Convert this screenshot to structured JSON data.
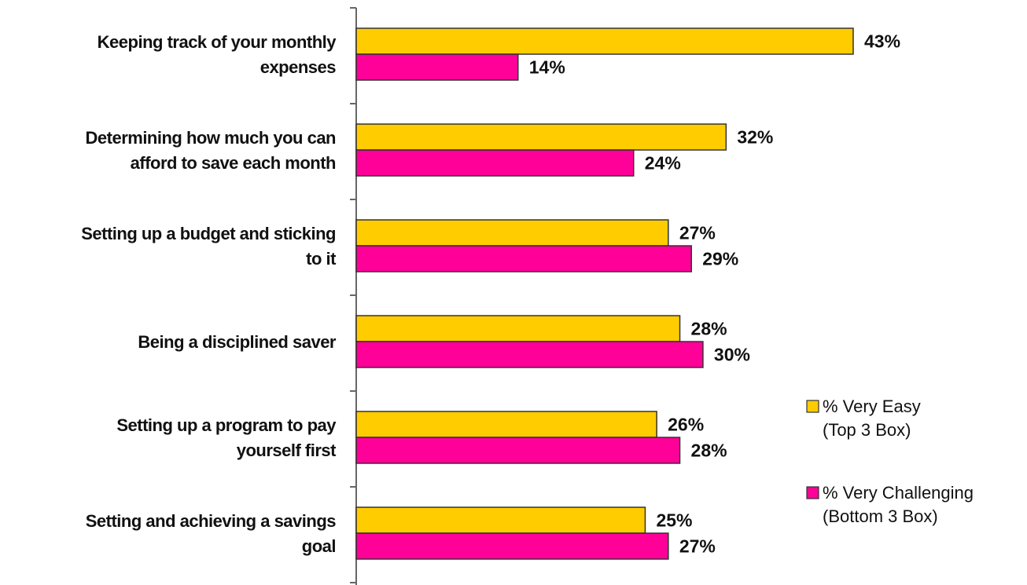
{
  "chart_data": {
    "type": "bar",
    "orientation": "horizontal",
    "categories": [
      [
        "Keeping track of your monthly",
        "expenses"
      ],
      [
        "Determining how much you can",
        "afford to save each month"
      ],
      [
        "Setting up a budget and sticking",
        "to it"
      ],
      [
        "Being a disciplined saver"
      ],
      [
        "Setting up a program to pay",
        "yourself first"
      ],
      [
        "Setting and achieving a savings",
        "goal"
      ]
    ],
    "series": [
      {
        "name_lines": [
          "% Very Easy",
          "(Top 3 Box)"
        ],
        "color": "#FFCC00",
        "values": [
          43,
          32,
          27,
          28,
          26,
          25
        ],
        "value_labels": [
          "43%",
          "32%",
          "27%",
          "28%",
          "26%",
          "25%"
        ]
      },
      {
        "name_lines": [
          "% Very Challenging",
          "(Bottom 3 Box)"
        ],
        "color": "#FF0099",
        "values": [
          14,
          24,
          29,
          30,
          28,
          27
        ],
        "value_labels": [
          "14%",
          "24%",
          "29%",
          "30%",
          "28%",
          "27%"
        ]
      }
    ],
    "xlim": [
      0,
      50
    ],
    "grid": false,
    "legend_position": "right"
  }
}
